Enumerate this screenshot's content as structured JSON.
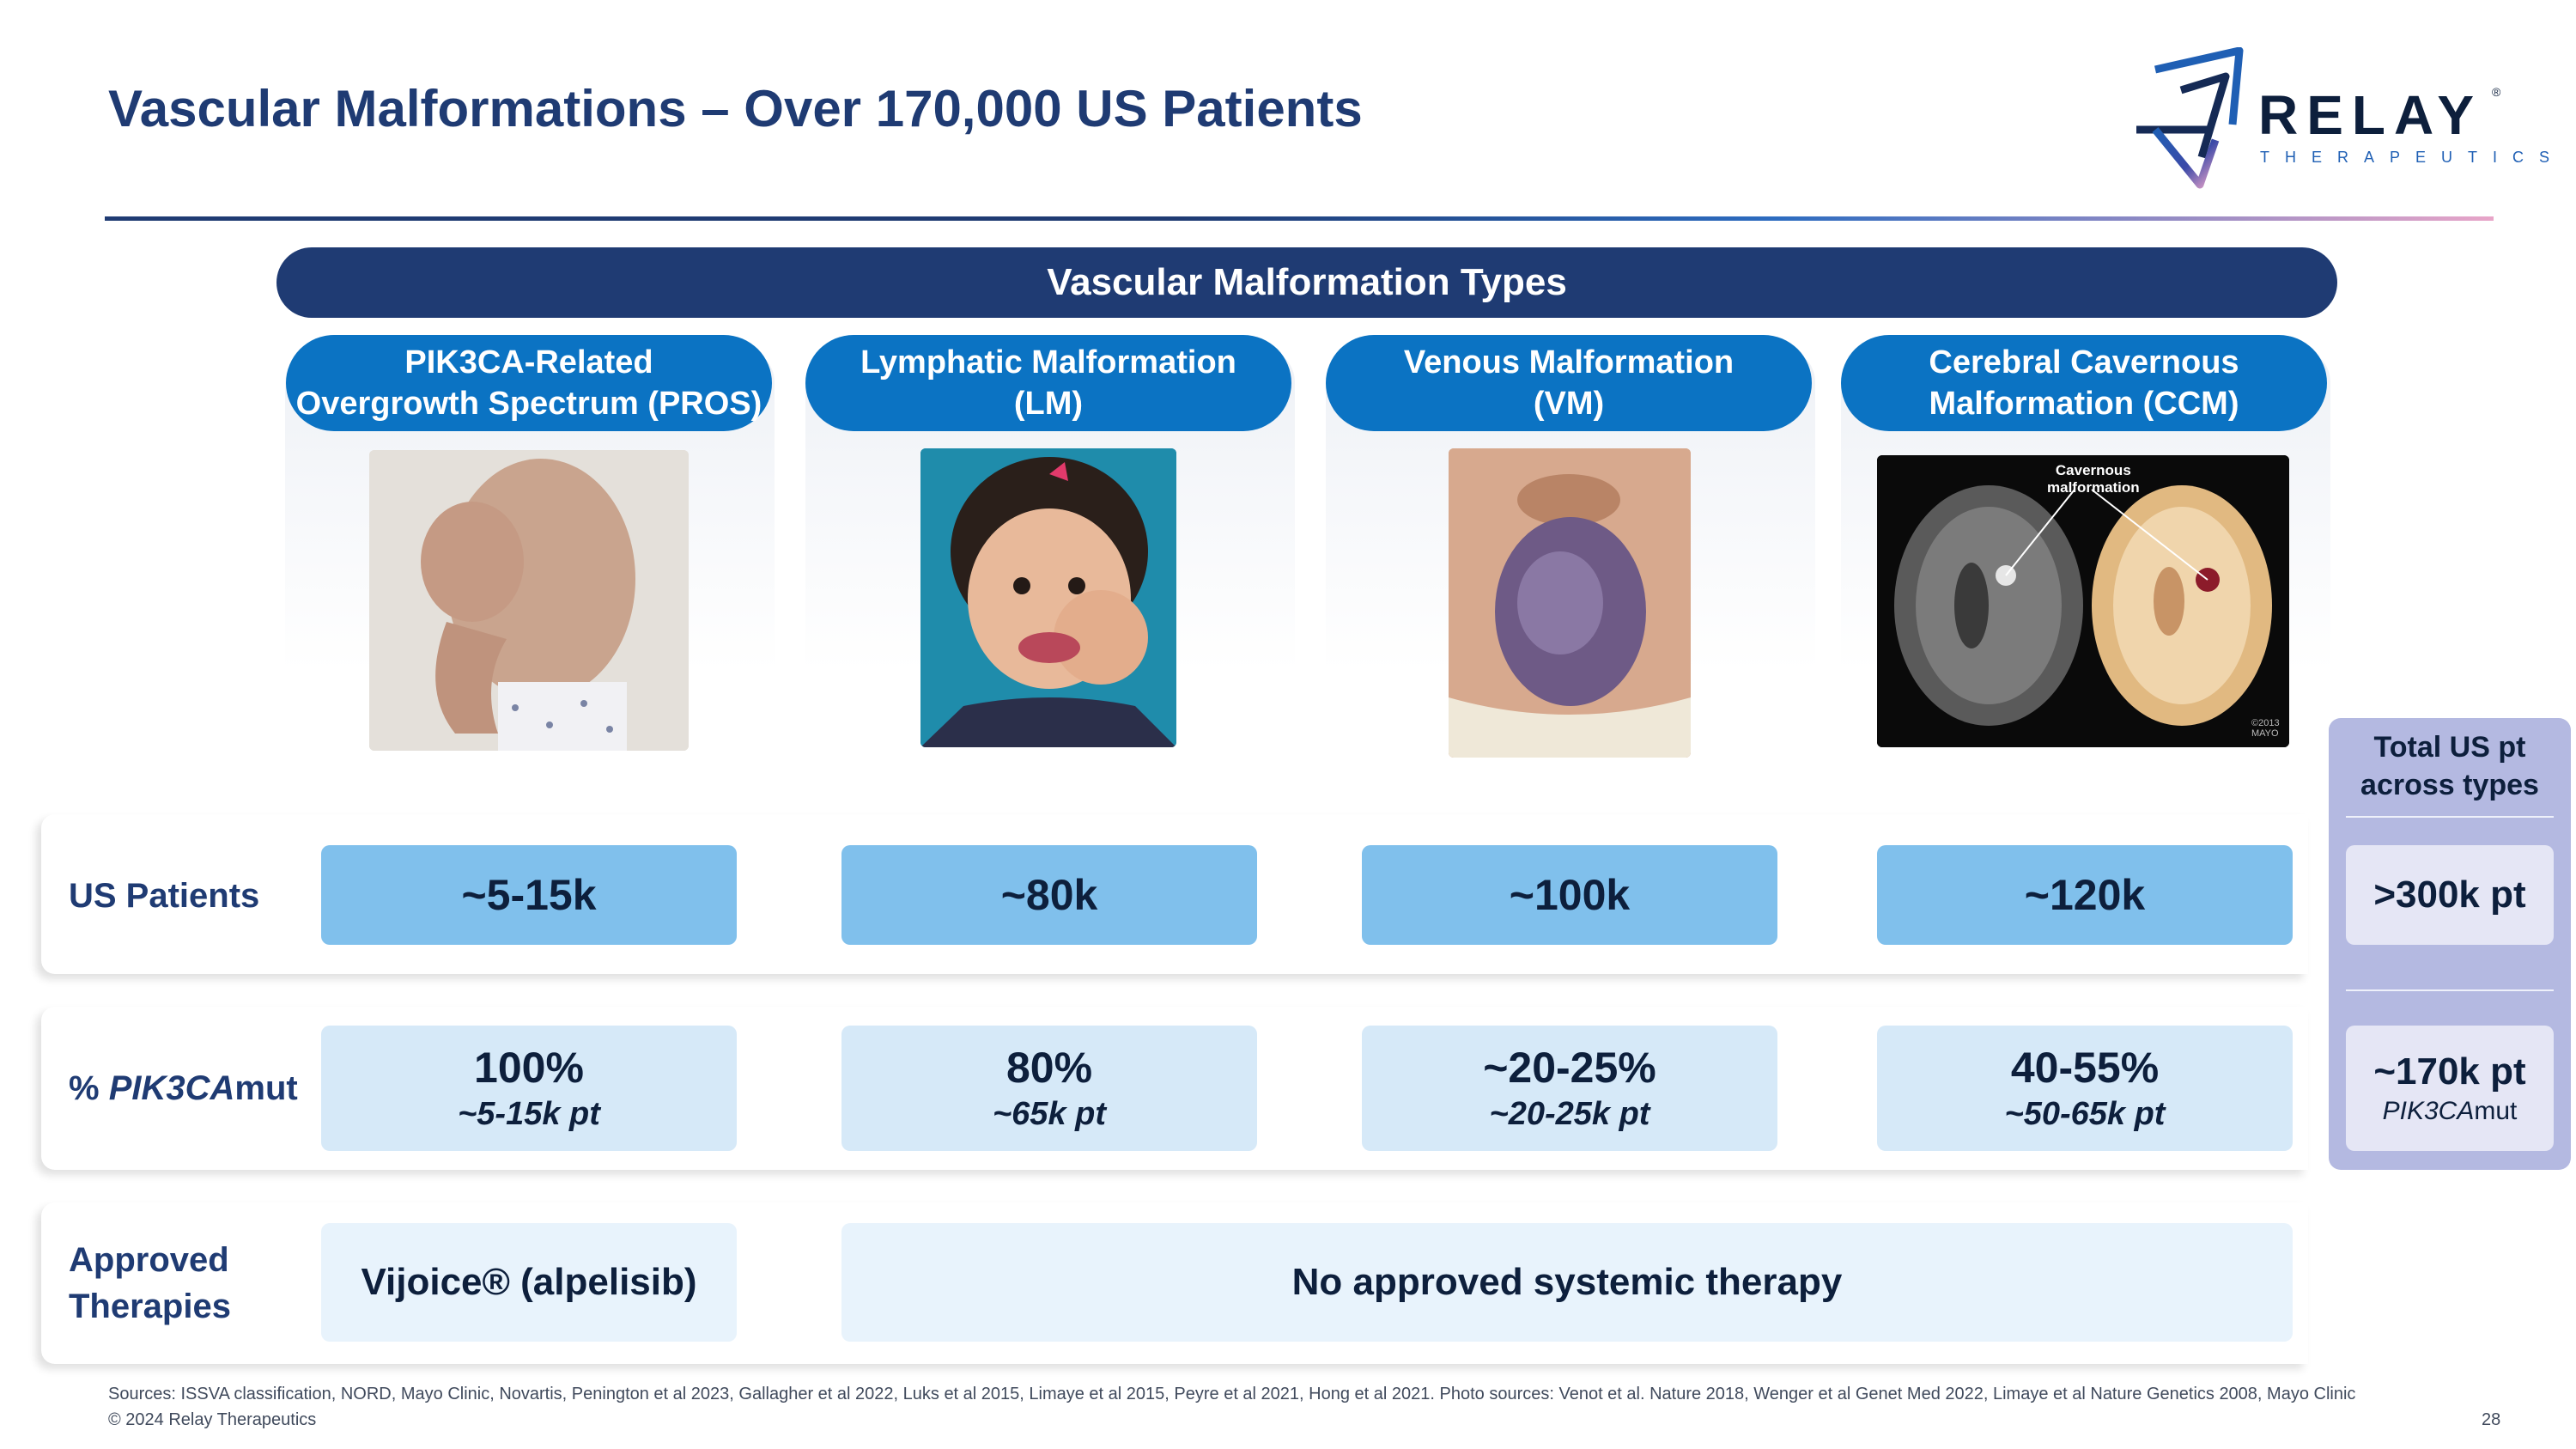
{
  "slide": {
    "title": "Vascular Malformations – Over 170,000 US Patients",
    "logo": {
      "word": "RELAY",
      "reg": "®",
      "sub": "THERAPEUTICS"
    },
    "banner": "Vascular Malformation Types",
    "columns": [
      {
        "line1": "PIK3CA-Related",
        "line2": "Overgrowth Spectrum (PROS)"
      },
      {
        "line1": "Lymphatic Malformation",
        "line2": "(LM)"
      },
      {
        "line1": "Venous Malformation",
        "line2": "(VM)"
      },
      {
        "line1": "Cerebral Cavernous",
        "line2": "Malformation (CCM)"
      }
    ],
    "ccm_photo": {
      "annot1": "Cavernous",
      "annot2": "malformation",
      "credit1": "©2013",
      "credit2": "MAYO"
    },
    "rows": {
      "us_patients": {
        "label": "US Patients",
        "values": [
          "~5-15k",
          "~80k",
          "~100k",
          "~120k"
        ]
      },
      "pik3ca": {
        "label_prefix": "% ",
        "label_italic": "PIK3CA",
        "label_suffix": "mut",
        "values": [
          {
            "pct": "100%",
            "pt": "~5-15k pt"
          },
          {
            "pct": "80%",
            "pt": "~65k pt"
          },
          {
            "pct": "~20-25%",
            "pt": "~20-25k pt"
          },
          {
            "pct": "40-55%",
            "pt": "~50-65k pt"
          }
        ]
      },
      "therapies": {
        "label_line1": "Approved",
        "label_line2": "Therapies",
        "pros": "Vijoice® (alpelisib)",
        "others": "No approved systemic therapy"
      }
    },
    "total": {
      "head1": "Total US pt",
      "head2": "across types",
      "us_total": ">300k pt",
      "mut_total": "~170k pt",
      "mut_italic": "PIK3CA",
      "mut_suffix": "mut"
    },
    "footer": {
      "sources": "Sources: ISSVA classification, NORD, Mayo Clinic, Novartis, Penington et al 2023, Gallagher et al 2022, Luks et al 2015, Limaye et al 2015, Peyre et al 2021, Hong et al 2021. Photo sources: Venot et al. Nature 2018, Wenger et al Genet Med 2022, Limaye et al Nature Genetics 2008, Mayo Clinic",
      "copyright": "© 2024 Relay Therapeutics",
      "page": "28"
    }
  }
}
